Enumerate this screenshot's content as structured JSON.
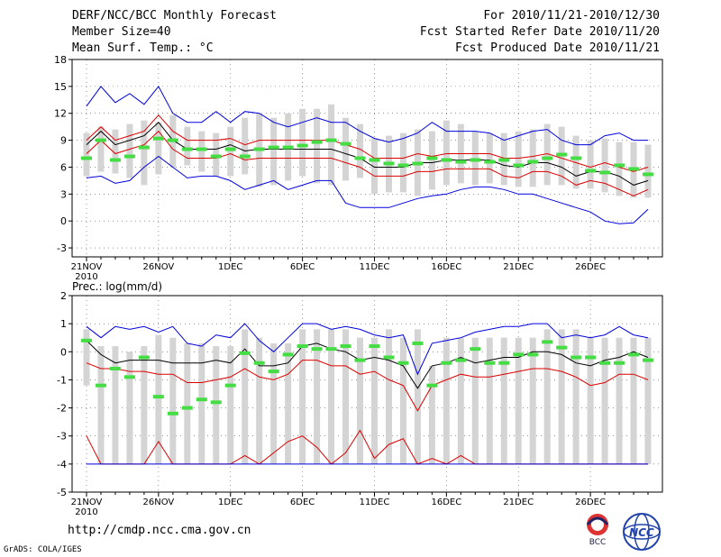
{
  "header": {
    "title": "DERF/NCC/BCC Monthly Forecast",
    "member_size": "Member Size=40",
    "variable": "Mean Surf. Temp.: °C",
    "forecast_period": "For 2010/11/21-2010/12/30",
    "fcst_started": "Fcst Started Refer Date 2010/11/20",
    "fcst_produced": "Fcst Produced Date 2010/11/21"
  },
  "footer": {
    "url": "http://cmdp.ncc.cma.gov.cn",
    "credit": "GrADS: COLA/IGES",
    "logo_bcc": "BCC",
    "logo_ncc": "NCC"
  },
  "colors": {
    "max": "#0000dd",
    "pct": "#dd0000",
    "mean": "#000000",
    "median": "#44dd44",
    "box": "#d4d4d4"
  },
  "chart_data": [
    {
      "type": "box-ensemble",
      "title": "Mean Surf. Temp.: °C",
      "ylim": [
        -4,
        18
      ],
      "yticks": [
        -3,
        0,
        3,
        6,
        9,
        12,
        15,
        18
      ],
      "xtick_labels": [
        "21NOV",
        "26NOV",
        "1DEC",
        "6DEC",
        "11DEC",
        "16DEC",
        "21DEC",
        "26DEC"
      ],
      "xtick_days": [
        0,
        5,
        10,
        15,
        20,
        25,
        30,
        35
      ],
      "year_label": "2010",
      "days": 40,
      "box_low": [
        5,
        5.5,
        5.3,
        4.8,
        4,
        5.2,
        6,
        6.2,
        5.5,
        5,
        5,
        5.2,
        3.8,
        4,
        4.5,
        5,
        4.2,
        4,
        4.5,
        4.8,
        3,
        3.2,
        3.2,
        2.8,
        3.5,
        4,
        4.2,
        4,
        4.2,
        4,
        3.8,
        3.8,
        4,
        4,
        3.6,
        3.6,
        3.2,
        2.8,
        2.6,
        2.6
      ],
      "box_high": [
        9.8,
        10.5,
        10.2,
        10.8,
        11.2,
        11,
        11.8,
        10.5,
        10,
        9.8,
        10.5,
        11.5,
        12,
        11.5,
        12,
        12.5,
        12.5,
        13,
        11.5,
        10.8,
        9.2,
        9.5,
        9.8,
        10.2,
        10,
        11.2,
        10.8,
        10,
        9.8,
        9.8,
        10,
        10.2,
        10.8,
        10.5,
        9.5,
        9,
        9.2,
        8.8,
        8.8,
        8.5
      ],
      "series": [
        {
          "name": "max",
          "values": [
            12.8,
            15,
            13.2,
            14.2,
            13,
            15,
            12,
            11,
            11,
            12.2,
            11,
            12.2,
            12,
            11,
            10.5,
            11,
            11.5,
            11,
            11,
            10,
            9.2,
            8.8,
            9.2,
            9.8,
            11,
            10,
            10,
            10,
            9.8,
            9,
            9.5,
            10,
            10.2,
            9,
            8.5,
            8.5,
            9.5,
            9.8,
            9,
            9
          ]
        },
        {
          "name": "p_high",
          "values": [
            9,
            10.5,
            9,
            9.5,
            10,
            11.8,
            10,
            9,
            9,
            9,
            9.2,
            8.5,
            9,
            9,
            9,
            9,
            9,
            9,
            8.5,
            8,
            7,
            7,
            7,
            7.5,
            7.2,
            7.5,
            7.5,
            7.5,
            7.5,
            7,
            7,
            7.2,
            7.5,
            7,
            6.5,
            6,
            6.5,
            6,
            5.5,
            6
          ]
        },
        {
          "name": "mean",
          "values": [
            8.5,
            10,
            8.5,
            9,
            9.5,
            11,
            9,
            8,
            8,
            8,
            8.5,
            7.8,
            8,
            8,
            8,
            8,
            8,
            8,
            7.5,
            7,
            6,
            6,
            6,
            6.5,
            6.5,
            6.8,
            6.8,
            6.8,
            6.8,
            6.2,
            6,
            6.5,
            6.5,
            6,
            5,
            5.5,
            5.5,
            5,
            4,
            4.5
          ]
        },
        {
          "name": "p_low",
          "values": [
            7.5,
            9,
            7.5,
            8,
            8.5,
            10,
            8,
            7,
            7,
            7,
            7.5,
            6.8,
            7,
            7,
            7,
            7,
            7,
            7,
            6.5,
            6,
            5,
            5,
            5,
            5.5,
            5.5,
            5.8,
            5.8,
            5.8,
            5.8,
            5,
            4.8,
            5.5,
            5.5,
            5,
            4,
            4.5,
            4.2,
            3.5,
            2.8,
            3.5
          ]
        },
        {
          "name": "min",
          "values": [
            4.8,
            5,
            4.2,
            4.5,
            6,
            7.2,
            6,
            4.8,
            5,
            5,
            4.5,
            3.5,
            4,
            4.5,
            3.5,
            4,
            4.5,
            4.5,
            2,
            1.5,
            1.5,
            1.5,
            2,
            2.5,
            2.8,
            3,
            3.5,
            3.8,
            3.8,
            3.5,
            3,
            3,
            2.5,
            2,
            1.5,
            1,
            0,
            -0.3,
            -0.2,
            1.3
          ]
        },
        {
          "name": "median",
          "values": [
            7,
            9,
            6.8,
            7.2,
            8.2,
            9.2,
            9,
            8,
            8,
            7.2,
            8,
            7.2,
            8,
            8.2,
            8.2,
            8.4,
            8.8,
            9,
            8.6,
            7,
            6.8,
            6.4,
            6.2,
            6.4,
            7,
            6.8,
            6.6,
            6.8,
            6.6,
            6.8,
            6.2,
            6.6,
            7,
            7.4,
            7,
            5.6,
            5.4,
            6.2,
            5.8,
            5.2
          ]
        }
      ]
    },
    {
      "type": "box-ensemble",
      "title": "Prec.: log(mm/d)",
      "ylim": [
        -5,
        2
      ],
      "yticks": [
        -5,
        -4,
        -3,
        -2,
        -1,
        0,
        1,
        2
      ],
      "xtick_labels": [
        "21NOV",
        "26NOV",
        "1DEC",
        "6DEC",
        "11DEC",
        "16DEC",
        "21DEC",
        "26DEC"
      ],
      "xtick_days": [
        0,
        5,
        10,
        15,
        20,
        25,
        30,
        35
      ],
      "year_label": "2010",
      "days": 40,
      "box_low": [
        -1.2,
        -4,
        -4,
        -4,
        -4,
        -4,
        -4,
        -4,
        -4,
        -4,
        -4,
        -4,
        -4,
        -4,
        -4,
        -4,
        -4,
        -4,
        -4,
        -4,
        -4,
        -4,
        -4,
        -4,
        -4,
        -4,
        -4,
        -4,
        -4,
        -4,
        -4,
        -4,
        -4,
        -4,
        -4,
        -4,
        -4,
        -4,
        -4,
        -4
      ],
      "box_high": [
        0.8,
        0.2,
        0.2,
        0,
        0.2,
        0.6,
        0.5,
        0.3,
        0.3,
        0.2,
        0.2,
        0.8,
        0.5,
        0.3,
        0.3,
        0.8,
        0.8,
        0.8,
        0.8,
        0.5,
        0.5,
        0.8,
        0.5,
        0.8,
        -0.5,
        0.5,
        0.5,
        0.5,
        0.5,
        0.5,
        0.5,
        0.5,
        0.8,
        0.8,
        0.8,
        0.5,
        0.5,
        0.5,
        0.5,
        0.5
      ],
      "series": [
        {
          "name": "max",
          "values": [
            0.9,
            0.5,
            0.9,
            0.8,
            0.9,
            0.7,
            0.9,
            0.3,
            0.2,
            0.6,
            0.5,
            1,
            0.4,
            0,
            0.5,
            1,
            1,
            0.8,
            0.9,
            0.8,
            0.6,
            0.5,
            0.6,
            -0.8,
            0.3,
            0.4,
            0.5,
            0.7,
            0.8,
            0.9,
            0.9,
            1,
            1,
            0.5,
            0.6,
            0.5,
            0.6,
            0.9,
            0.6,
            0.5
          ]
        },
        {
          "name": "mean",
          "values": [
            0.4,
            -0.1,
            -0.4,
            -0.3,
            -0.3,
            -0.3,
            -0.4,
            -0.4,
            -0.4,
            -0.3,
            -0.4,
            0.1,
            -0.5,
            -0.5,
            -0.4,
            0.2,
            0.3,
            0.1,
            0,
            -0.3,
            -0.2,
            -0.3,
            -0.5,
            -1.3,
            -0.5,
            -0.4,
            -0.2,
            -0.4,
            -0.3,
            -0.2,
            -0.2,
            0,
            0,
            -0.1,
            -0.4,
            -0.5,
            -0.3,
            -0.2,
            0,
            -0.2
          ]
        },
        {
          "name": "p_high",
          "values": [
            -0.4,
            -0.6,
            -0.6,
            -0.7,
            -0.7,
            -0.8,
            -0.8,
            -1.1,
            -1.1,
            -1,
            -0.9,
            -0.6,
            -0.9,
            -1,
            -0.8,
            -0.3,
            -0.3,
            -0.5,
            -0.5,
            -0.8,
            -0.7,
            -1,
            -1.2,
            -2.1,
            -1.2,
            -1,
            -0.8,
            -0.9,
            -0.9,
            -0.8,
            -0.7,
            -0.6,
            -0.6,
            -0.7,
            -0.9,
            -1.2,
            -1.1,
            -0.8,
            -0.8,
            -1
          ]
        },
        {
          "name": "p_low",
          "values": [
            -3,
            -4,
            -4,
            -4,
            -4,
            -3.2,
            -4,
            -4,
            -4,
            -4,
            -4,
            -3.7,
            -4,
            -3.6,
            -3.2,
            -3,
            -3.4,
            -4,
            -3.6,
            -2.8,
            -3.8,
            -3.3,
            -3.1,
            -4,
            -3.8,
            -4,
            -3.7,
            -4,
            -4,
            -4,
            -4,
            -4,
            -4,
            -4,
            -4,
            -4,
            -4,
            -4,
            -4,
            -4
          ]
        },
        {
          "name": "min",
          "values": [
            -4,
            -4,
            -4,
            -4,
            -4,
            -4,
            -4,
            -4,
            -4,
            -4,
            -4,
            -4,
            -4,
            -4,
            -4,
            -4,
            -4,
            -4,
            -4,
            -4,
            -4,
            -4,
            -4,
            -4,
            -4,
            -4,
            -4,
            -4,
            -4,
            -4,
            -4,
            -4,
            -4,
            -4,
            -4,
            -4,
            -4,
            -4,
            -4,
            -4
          ]
        },
        {
          "name": "median",
          "values": [
            0.4,
            -1.2,
            -0.6,
            -0.9,
            -0.2,
            -1.6,
            -2.2,
            -2,
            -1.7,
            -1.8,
            -1.2,
            -0.05,
            -0.4,
            -0.7,
            -0.1,
            0.2,
            0.1,
            0.1,
            0.2,
            -0.3,
            0.2,
            -0.2,
            -0.4,
            0.3,
            -1.2,
            -0.4,
            -0.3,
            0.1,
            -0.4,
            -0.4,
            -0.1,
            -0.1,
            0.35,
            0.15,
            -0.2,
            -0.2,
            -0.4,
            -0.4,
            -0.1,
            -0.3
          ]
        }
      ]
    }
  ]
}
